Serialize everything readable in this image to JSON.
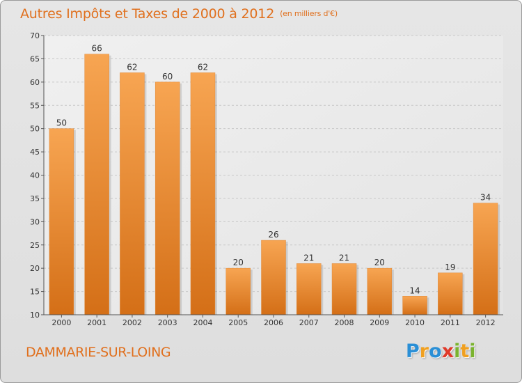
{
  "chart_data": {
    "type": "bar",
    "title": "Autres Impôts et Taxes de 2000 à 2012",
    "subtitle": "(en milliers d'€)",
    "categories": [
      "2000",
      "2001",
      "2002",
      "2003",
      "2004",
      "2005",
      "2006",
      "2007",
      "2008",
      "2009",
      "2010",
      "2011",
      "2012"
    ],
    "values": [
      50,
      66,
      62,
      60,
      62,
      20,
      26,
      21,
      21,
      20,
      14,
      19,
      34
    ],
    "ylim": [
      10,
      70
    ],
    "yticks": [
      10,
      15,
      20,
      25,
      30,
      35,
      40,
      45,
      50,
      55,
      60,
      65,
      70
    ],
    "grid": true,
    "bar_color_top": "#f7a552",
    "bar_color_bottom": "#d46f17"
  },
  "footer": {
    "town": "DAMMARIE-SUR-LOING",
    "logo": {
      "p": "P",
      "r": "r",
      "o": "o",
      "x": "x",
      "i1": "i",
      "t": "t",
      "i2": "i"
    }
  },
  "colors": {
    "accent": "#e0701e"
  }
}
